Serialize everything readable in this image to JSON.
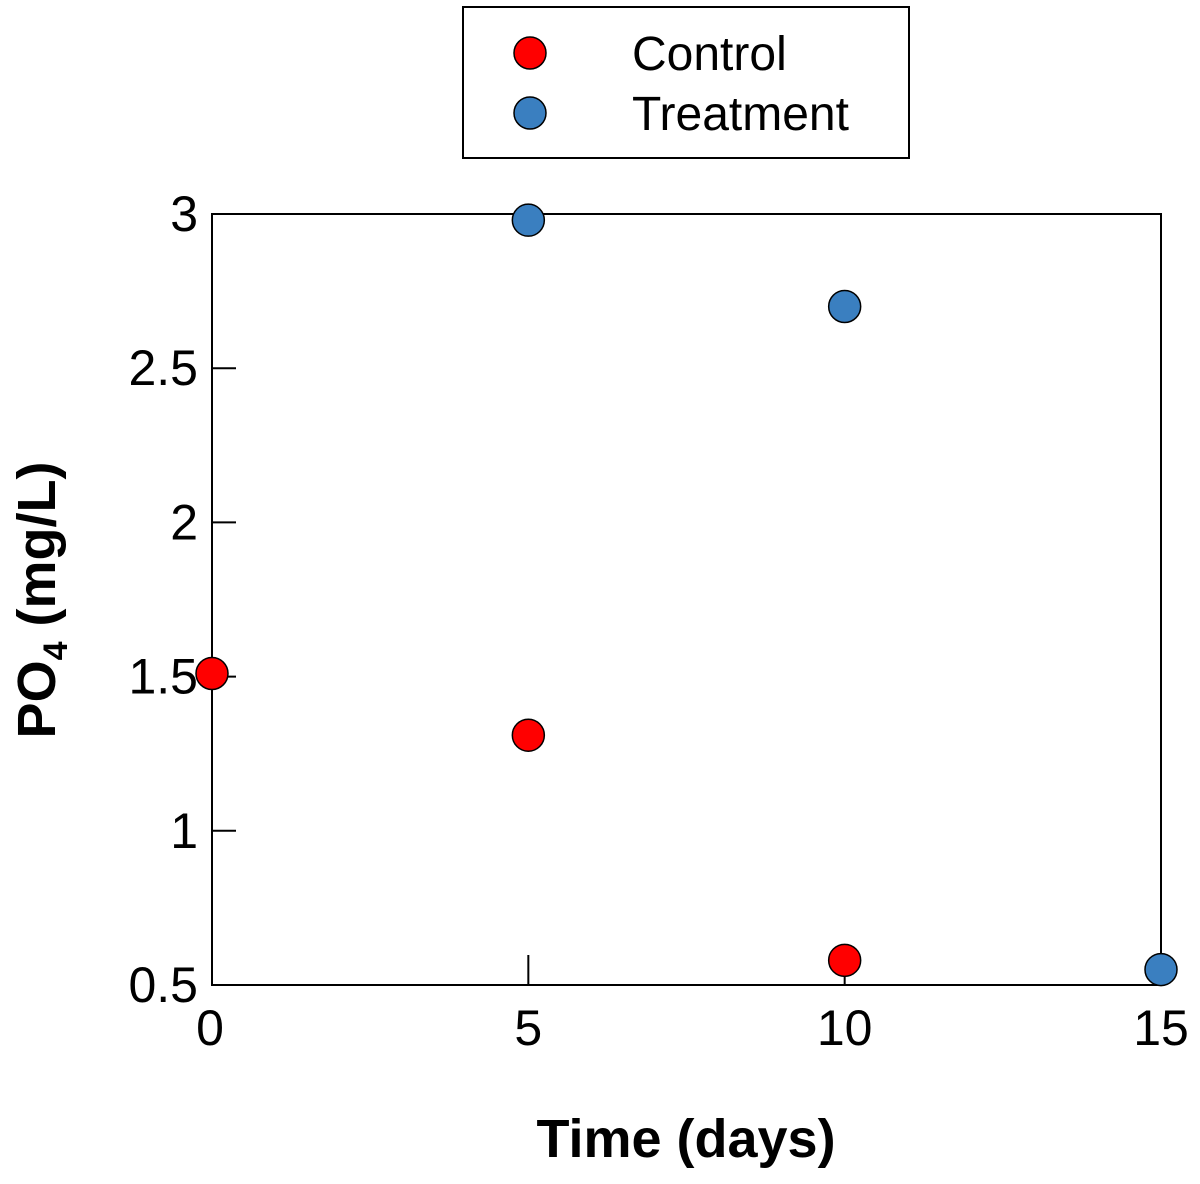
{
  "chart_data": {
    "type": "scatter",
    "xlabel": "Time (days)",
    "ylabel_main": "PO",
    "ylabel_subscript": "4",
    "ylabel_units": " (mg/L)",
    "xlim": [
      0,
      15
    ],
    "ylim": [
      0.5,
      3
    ],
    "xticks": [
      0,
      5,
      10,
      15
    ],
    "xtick_labels": [
      "0",
      "5",
      "10",
      "15"
    ],
    "yticks": [
      0.5,
      1,
      1.5,
      2,
      2.5,
      3
    ],
    "ytick_labels": [
      "0.5",
      "1",
      "1.5",
      "2",
      "2.5",
      "3"
    ],
    "grid": false,
    "legend_position": "top-center",
    "series": [
      {
        "name": "Control",
        "color": "#ff0000",
        "points": [
          {
            "x": 0,
            "y": 1.51
          },
          {
            "x": 5,
            "y": 1.31
          },
          {
            "x": 10,
            "y": 0.58
          }
        ]
      },
      {
        "name": "Treatment",
        "color": "#3a7fc0",
        "points": [
          {
            "x": 5,
            "y": 2.98
          },
          {
            "x": 10,
            "y": 2.7
          },
          {
            "x": 15,
            "y": 0.55
          }
        ]
      }
    ]
  }
}
